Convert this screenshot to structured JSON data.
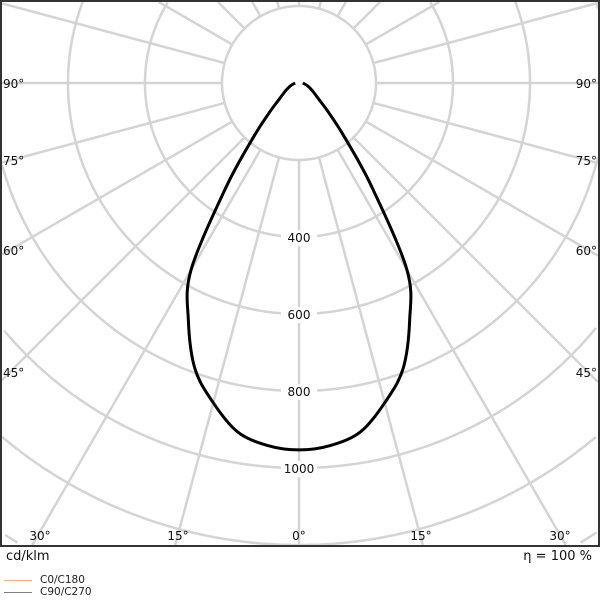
{
  "chart_data": {
    "type": "polar",
    "unit_label": "cd/klm",
    "efficiency_label": "η = 100 %",
    "radial_ticks": [
      400,
      600,
      800,
      1000
    ],
    "radial_grid": [
      200,
      400,
      600,
      800,
      1000,
      1200,
      1400
    ],
    "angle_step_deg": 15,
    "angle_labels": {
      "left": [
        "90°",
        "75°",
        "60°",
        "45°"
      ],
      "right": [
        "90°",
        "75°",
        "60°",
        "45°"
      ],
      "bottom": [
        "30°",
        "15°",
        "0°",
        "15°",
        "30°"
      ]
    },
    "angles_deg": [
      0,
      5,
      10,
      15,
      20,
      25,
      30,
      35,
      40,
      45,
      50,
      60,
      70,
      80,
      90
    ],
    "series": [
      {
        "name": "C0/C180",
        "color": "#f5b07a",
        "values": [
          953,
          945,
          920,
          860,
          790,
          680,
          561,
          330,
          185,
          110,
          70,
          40,
          25,
          15,
          10
        ]
      },
      {
        "name": "C90/C270",
        "color": "#808080",
        "values": [
          953,
          945,
          920,
          860,
          790,
          680,
          561,
          330,
          185,
          110,
          70,
          40,
          25,
          15,
          10
        ]
      }
    ],
    "curve_color": "#000000",
    "grid": true,
    "legend_position": "bottom-left"
  }
}
